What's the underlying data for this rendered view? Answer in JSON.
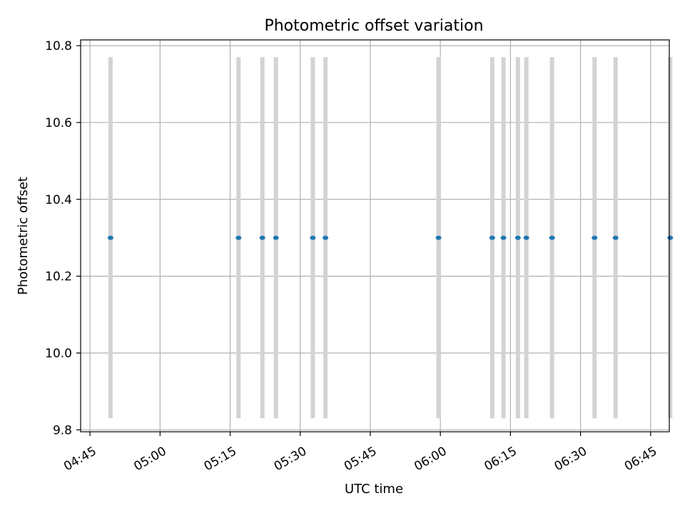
{
  "chart_data": {
    "type": "scatter",
    "title": "Photometric offset variation",
    "xlabel": "UTC time",
    "ylabel": "Photometric offset",
    "xlim": [
      "04:43",
      "06:49"
    ],
    "ylim": [
      9.795,
      10.815
    ],
    "x_ticks": [
      "04:45",
      "05:00",
      "05:15",
      "05:30",
      "05:45",
      "06:00",
      "06:15",
      "06:30",
      "06:45"
    ],
    "y_ticks": [
      "9.8",
      "10.0",
      "10.2",
      "10.4",
      "10.6",
      "10.8"
    ],
    "grid": true,
    "colors": {
      "points": "#1f77b4",
      "error_bars": "#d3d3d3",
      "grid": "#b0b0b0",
      "axes": "#000000"
    },
    "series": [
      {
        "points": [
          {
            "x": "04:49:24",
            "y": 10.3,
            "yerr": [
              9.83,
              10.77
            ]
          },
          {
            "x": "05:16:48",
            "y": 10.3,
            "yerr": [
              9.83,
              10.77
            ]
          },
          {
            "x": "05:21:54",
            "y": 10.3,
            "yerr": [
              9.83,
              10.77
            ]
          },
          {
            "x": "05:24:48",
            "y": 10.3,
            "yerr": [
              9.83,
              10.77
            ]
          },
          {
            "x": "05:32:42",
            "y": 10.3,
            "yerr": [
              9.83,
              10.77
            ]
          },
          {
            "x": "05:35:24",
            "y": 10.3,
            "yerr": [
              9.83,
              10.77
            ]
          },
          {
            "x": "05:59:36",
            "y": 10.3,
            "yerr": [
              9.83,
              10.77
            ]
          },
          {
            "x": "06:11:06",
            "y": 10.3,
            "yerr": [
              9.83,
              10.77
            ]
          },
          {
            "x": "06:13:30",
            "y": 10.3,
            "yerr": [
              9.83,
              10.77
            ]
          },
          {
            "x": "06:16:36",
            "y": 10.3,
            "yerr": [
              9.83,
              10.77
            ]
          },
          {
            "x": "06:18:24",
            "y": 10.3,
            "yerr": [
              9.83,
              10.77
            ]
          },
          {
            "x": "06:23:54",
            "y": 10.3,
            "yerr": [
              9.83,
              10.77
            ]
          },
          {
            "x": "06:33:00",
            "y": 10.3,
            "yerr": [
              9.83,
              10.77
            ]
          },
          {
            "x": "06:37:30",
            "y": 10.3,
            "yerr": [
              9.83,
              10.77
            ]
          },
          {
            "x": "06:49:12",
            "y": 10.3,
            "yerr": [
              9.83,
              10.77
            ]
          }
        ]
      }
    ]
  }
}
